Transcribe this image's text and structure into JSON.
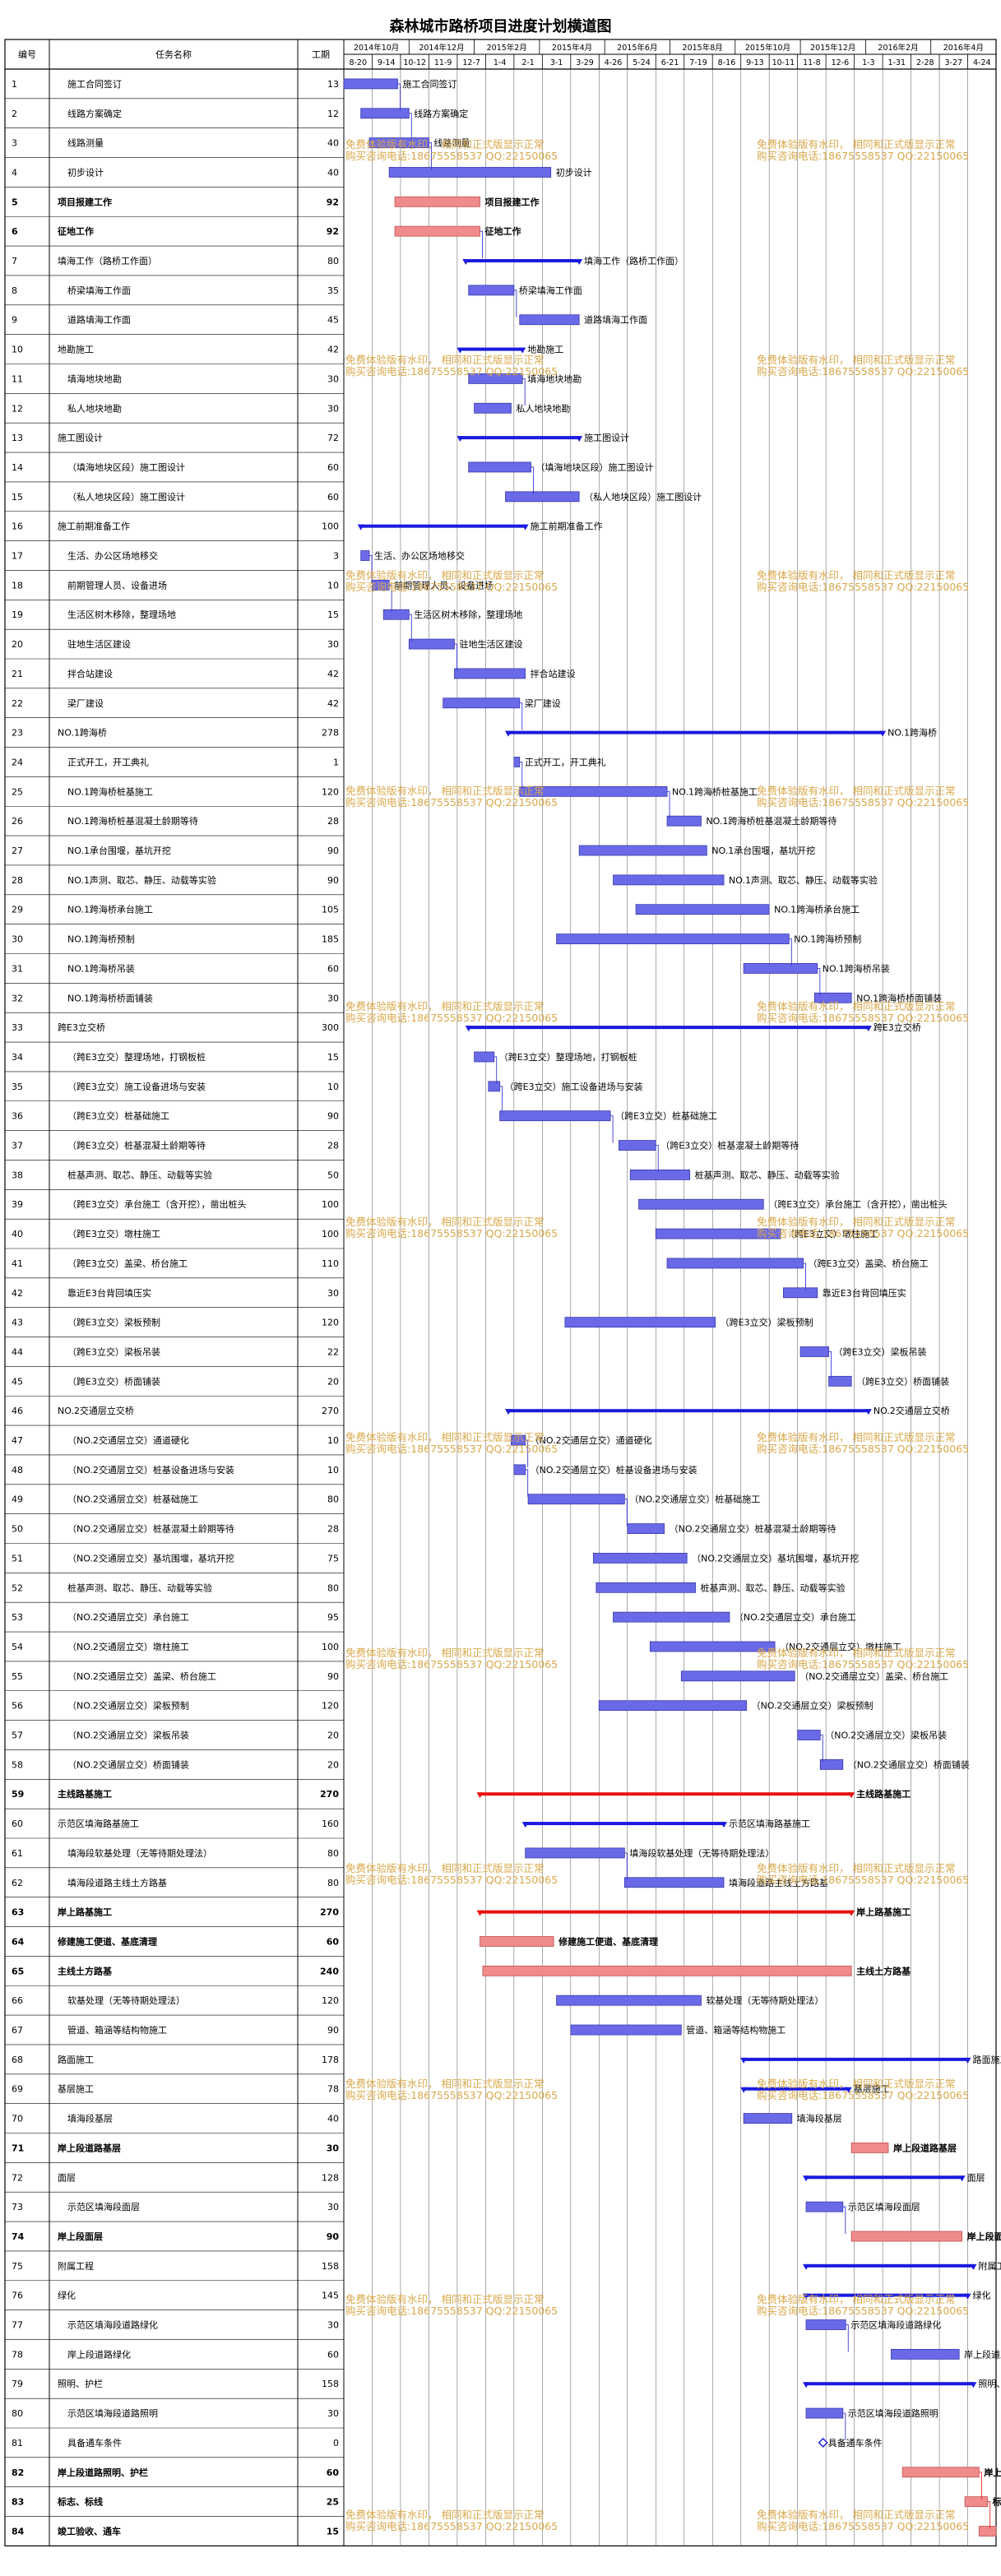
{
  "title": "森林城市路桥项目进度计划横道图",
  "headers": {
    "id": "编号",
    "name": "任务名称",
    "dur": "工期"
  },
  "months": [
    "2014年10月",
    "2014年12月",
    "2015年2月",
    "2015年4月",
    "2015年6月",
    "2015年8月",
    "2015年10月",
    "2015年12月",
    "2016年2月",
    "2016年4月"
  ],
  "weeks": [
    "8-20",
    "9-14",
    "10-12",
    "11-9",
    "12-7",
    "1-4",
    "2-1",
    "3-1",
    "3-29",
    "4-26",
    "5-24",
    "6-21",
    "7-19",
    "8-16",
    "9-13",
    "10-11",
    "11-8",
    "12-6",
    "1-3",
    "1-31",
    "2-28",
    "3-27",
    "4-24"
  ],
  "watermark": {
    "line1": "免费体验版有水印，  相同和正式版显示正常",
    "line2": "购买咨询电话:18675558537 QQ:22150065"
  },
  "colors": {
    "normal": "#6a6ae8",
    "critical": "#ef8b8b",
    "summary": "#1a1ae0",
    "summary_critical": "#e81010",
    "link": "#3a3ad8",
    "link_critical": "#e82020"
  },
  "chart_data": {
    "type": "gantt",
    "x_axis": "weeks from 2014-08-20",
    "rows": [
      {
        "id": "1",
        "name": "施工合同签订",
        "dur": 13,
        "start": 0.0,
        "end": 1.9,
        "kind": "task",
        "crit": false
      },
      {
        "id": "2",
        "name": "线路方案确定",
        "dur": 12,
        "start": 0.6,
        "end": 2.3,
        "kind": "task",
        "crit": false
      },
      {
        "id": "3",
        "name": "线路测量",
        "dur": 40,
        "start": 0.9,
        "end": 3.0,
        "kind": "task",
        "crit": false
      },
      {
        "id": "4",
        "name": "初步设计",
        "dur": 40,
        "start": 1.6,
        "end": 7.3,
        "kind": "task",
        "crit": false
      },
      {
        "id": "5",
        "name": "项目报建工作",
        "dur": 92,
        "start": 1.8,
        "end": 4.8,
        "kind": "task",
        "crit": true,
        "bold": true
      },
      {
        "id": "6",
        "name": "征地工作",
        "dur": 92,
        "start": 1.8,
        "end": 4.8,
        "kind": "task",
        "crit": true,
        "bold": true
      },
      {
        "id": "7",
        "name": "填海工作（路桥工作面）",
        "dur": 80,
        "start": 4.3,
        "end": 8.3,
        "kind": "summary",
        "crit": false
      },
      {
        "id": "8",
        "name": "桥梁填海工作面",
        "dur": 35,
        "start": 4.4,
        "end": 6.0,
        "kind": "task",
        "crit": false
      },
      {
        "id": "9",
        "name": "道路填海工作面",
        "dur": 45,
        "start": 6.2,
        "end": 8.3,
        "kind": "task",
        "crit": false
      },
      {
        "id": "10",
        "name": "地勘施工",
        "dur": 42,
        "start": 4.1,
        "end": 6.3,
        "kind": "summary",
        "crit": false
      },
      {
        "id": "11",
        "name": "填海地块地勘",
        "dur": 30,
        "start": 4.4,
        "end": 6.3,
        "kind": "task",
        "crit": false
      },
      {
        "id": "12",
        "name": "私人地块地勘",
        "dur": 30,
        "start": 4.6,
        "end": 5.9,
        "kind": "task",
        "crit": false
      },
      {
        "id": "13",
        "name": "施工图设计",
        "dur": 72,
        "start": 4.1,
        "end": 8.3,
        "kind": "summary",
        "crit": false
      },
      {
        "id": "14",
        "name": "（填海地块区段）施工图设计",
        "dur": 60,
        "start": 4.4,
        "end": 6.6,
        "kind": "task",
        "crit": false
      },
      {
        "id": "15",
        "name": "（私人地块区段）施工图设计",
        "dur": 60,
        "start": 5.7,
        "end": 8.3,
        "kind": "task",
        "crit": false
      },
      {
        "id": "16",
        "name": "施工前期准备工作",
        "dur": 100,
        "start": 0.6,
        "end": 6.4,
        "kind": "summary",
        "crit": false
      },
      {
        "id": "17",
        "name": "生活、办公区场地移交",
        "dur": 3,
        "start": 0.6,
        "end": 0.9,
        "kind": "task",
        "crit": false
      },
      {
        "id": "18",
        "name": "前期管理人员、设备进场",
        "dur": 10,
        "start": 1.0,
        "end": 1.6,
        "kind": "task",
        "crit": false
      },
      {
        "id": "19",
        "name": "生活区树木移除，整理场地",
        "dur": 15,
        "start": 1.4,
        "end": 2.3,
        "kind": "task",
        "crit": false
      },
      {
        "id": "20",
        "name": "驻地生活区建设",
        "dur": 30,
        "start": 2.3,
        "end": 3.9,
        "kind": "task",
        "crit": false
      },
      {
        "id": "21",
        "name": "拌合站建设",
        "dur": 42,
        "start": 3.9,
        "end": 6.4,
        "kind": "task",
        "crit": false
      },
      {
        "id": "22",
        "name": "梁厂建设",
        "dur": 42,
        "start": 3.5,
        "end": 6.2,
        "kind": "task",
        "crit": false
      },
      {
        "id": "23",
        "name": "NO.1跨海桥",
        "dur": 278,
        "start": 5.8,
        "end": 19.0,
        "kind": "summary",
        "crit": false
      },
      {
        "id": "24",
        "name": "正式开工，开工典礼",
        "dur": 1,
        "start": 6.0,
        "end": 6.2,
        "kind": "task",
        "crit": false
      },
      {
        "id": "25",
        "name": "NO.1跨海桥桩基施工",
        "dur": 120,
        "start": 6.2,
        "end": 11.4,
        "kind": "task",
        "crit": false
      },
      {
        "id": "26",
        "name": "NO.1跨海桥桩基混凝土龄期等待",
        "dur": 28,
        "start": 11.4,
        "end": 12.6,
        "kind": "task",
        "crit": false
      },
      {
        "id": "27",
        "name": "NO.1承台围堰，基坑开挖",
        "dur": 90,
        "start": 8.3,
        "end": 12.8,
        "kind": "task",
        "crit": false
      },
      {
        "id": "28",
        "name": "NO.1声测、取芯、静压、动载等实验",
        "dur": 90,
        "start": 9.5,
        "end": 13.4,
        "kind": "task",
        "crit": false
      },
      {
        "id": "29",
        "name": "NO.1跨海桥承台施工",
        "dur": 105,
        "start": 10.3,
        "end": 15.0,
        "kind": "task",
        "crit": false
      },
      {
        "id": "30",
        "name": "NO.1跨海桥预制",
        "dur": 185,
        "start": 7.5,
        "end": 15.7,
        "kind": "task",
        "crit": false
      },
      {
        "id": "31",
        "name": "NO.1跨海桥吊装",
        "dur": 60,
        "start": 14.1,
        "end": 16.7,
        "kind": "task",
        "crit": false
      },
      {
        "id": "32",
        "name": "NO.1跨海桥桥面铺装",
        "dur": 30,
        "start": 16.6,
        "end": 17.9,
        "kind": "task",
        "crit": false
      },
      {
        "id": "33",
        "name": "跨E3立交桥",
        "dur": 300,
        "start": 4.4,
        "end": 18.5,
        "kind": "summary",
        "crit": false
      },
      {
        "id": "34",
        "name": "（跨E3立交）整理场地，打钢板桩",
        "dur": 15,
        "start": 4.6,
        "end": 5.3,
        "kind": "task",
        "crit": false
      },
      {
        "id": "35",
        "name": "（跨E3立交）施工设备进场与安装",
        "dur": 10,
        "start": 5.1,
        "end": 5.5,
        "kind": "task",
        "crit": false
      },
      {
        "id": "36",
        "name": "（跨E3立交）桩基础施工",
        "dur": 90,
        "start": 5.5,
        "end": 9.4,
        "kind": "task",
        "crit": false
      },
      {
        "id": "37",
        "name": "（跨E3立交）桩基混凝土龄期等待",
        "dur": 28,
        "start": 9.7,
        "end": 11.0,
        "kind": "task",
        "crit": false
      },
      {
        "id": "38",
        "name": "桩基声测、取芯、静压、动载等实验",
        "dur": 50,
        "start": 10.1,
        "end": 12.2,
        "kind": "task",
        "crit": false
      },
      {
        "id": "39",
        "name": "（跨E3立交）承台施工（含开挖），凿出桩头",
        "dur": 100,
        "start": 10.4,
        "end": 14.8,
        "kind": "task",
        "crit": false
      },
      {
        "id": "40",
        "name": "（跨E3立交）墩柱施工",
        "dur": 100,
        "start": 11.0,
        "end": 15.4,
        "kind": "task",
        "crit": false
      },
      {
        "id": "41",
        "name": "（跨E3立交）盖梁、桥台施工",
        "dur": 110,
        "start": 11.4,
        "end": 16.2,
        "kind": "task",
        "crit": false
      },
      {
        "id": "42",
        "name": "靠近E3台背回填压实",
        "dur": 30,
        "start": 15.5,
        "end": 16.7,
        "kind": "task",
        "crit": false
      },
      {
        "id": "43",
        "name": "（跨E3立交）梁板预制",
        "dur": 120,
        "start": 7.8,
        "end": 13.1,
        "kind": "task",
        "crit": false
      },
      {
        "id": "44",
        "name": "（跨E3立交）梁板吊装",
        "dur": 22,
        "start": 16.1,
        "end": 17.1,
        "kind": "task",
        "crit": false
      },
      {
        "id": "45",
        "name": "（跨E3立交）桥面铺装",
        "dur": 20,
        "start": 17.1,
        "end": 17.9,
        "kind": "task",
        "crit": false
      },
      {
        "id": "46",
        "name": "NO.2交通层立交桥",
        "dur": 270,
        "start": 5.8,
        "end": 18.5,
        "kind": "summary",
        "crit": false
      },
      {
        "id": "47",
        "name": "（NO.2交通层立交）通道硬化",
        "dur": 10,
        "start": 5.9,
        "end": 6.4,
        "kind": "task",
        "crit": false
      },
      {
        "id": "48",
        "name": "（NO.2交通层立交）桩基设备进场与安装",
        "dur": 10,
        "start": 6.0,
        "end": 6.4,
        "kind": "task",
        "crit": false
      },
      {
        "id": "49",
        "name": "（NO.2交通层立交）桩基础施工",
        "dur": 80,
        "start": 6.5,
        "end": 9.9,
        "kind": "task",
        "crit": false
      },
      {
        "id": "50",
        "name": "（NO.2交通层立交）桩基混凝土龄期等待",
        "dur": 28,
        "start": 10.0,
        "end": 11.3,
        "kind": "task",
        "crit": false
      },
      {
        "id": "51",
        "name": "（NO.2交通层立交）基坑围堰，基坑开挖",
        "dur": 75,
        "start": 8.8,
        "end": 12.1,
        "kind": "task",
        "crit": false
      },
      {
        "id": "52",
        "name": "桩基声测、取芯、静压、动载等实验",
        "dur": 80,
        "start": 8.9,
        "end": 12.4,
        "kind": "task",
        "crit": false
      },
      {
        "id": "53",
        "name": "（NO.2交通层立交）承台施工",
        "dur": 95,
        "start": 9.5,
        "end": 13.6,
        "kind": "task",
        "crit": false
      },
      {
        "id": "54",
        "name": "（NO.2交通层立交）墩柱施工",
        "dur": 100,
        "start": 10.8,
        "end": 15.2,
        "kind": "task",
        "crit": false
      },
      {
        "id": "55",
        "name": "（NO.2交通层立交）盖梁、桥台施工",
        "dur": 90,
        "start": 11.9,
        "end": 15.9,
        "kind": "task",
        "crit": false
      },
      {
        "id": "56",
        "name": "（NO.2交通层立交）梁板预制",
        "dur": 120,
        "start": 9.0,
        "end": 14.2,
        "kind": "task",
        "crit": false
      },
      {
        "id": "57",
        "name": "（NO.2交通层立交）梁板吊装",
        "dur": 20,
        "start": 16.0,
        "end": 16.8,
        "kind": "task",
        "crit": false
      },
      {
        "id": "58",
        "name": "（NO.2交通层立交）桥面铺装",
        "dur": 20,
        "start": 16.8,
        "end": 17.6,
        "kind": "task",
        "crit": false
      },
      {
        "id": "59",
        "name": "主线路基施工",
        "dur": 270,
        "start": 4.8,
        "end": 17.9,
        "kind": "summary",
        "crit": true,
        "bold": true
      },
      {
        "id": "60",
        "name": "示范区填海路基施工",
        "dur": 160,
        "start": 6.4,
        "end": 13.4,
        "kind": "summary",
        "crit": false
      },
      {
        "id": "61",
        "name": "填海段软基处理（无等待期处理法）",
        "dur": 80,
        "start": 6.4,
        "end": 9.9,
        "kind": "task",
        "crit": false
      },
      {
        "id": "62",
        "name": "填海段道路主线土方路基",
        "dur": 80,
        "start": 9.9,
        "end": 13.4,
        "kind": "task",
        "crit": false
      },
      {
        "id": "63",
        "name": "岸上路基施工",
        "dur": 270,
        "start": 4.8,
        "end": 17.9,
        "kind": "summary",
        "crit": true,
        "bold": true
      },
      {
        "id": "64",
        "name": "修建施工便道、基底清理",
        "dur": 60,
        "start": 4.8,
        "end": 7.4,
        "kind": "task",
        "crit": true,
        "bold": true
      },
      {
        "id": "65",
        "name": "主线土方路基",
        "dur": 240,
        "start": 4.9,
        "end": 17.9,
        "kind": "task",
        "crit": true,
        "bold": true
      },
      {
        "id": "66",
        "name": "软基处理（无等待期处理法）",
        "dur": 120,
        "start": 7.5,
        "end": 12.6,
        "kind": "task",
        "crit": false
      },
      {
        "id": "67",
        "name": "管道、箱涵等结构物施工",
        "dur": 90,
        "start": 8.0,
        "end": 11.9,
        "kind": "task",
        "crit": false
      },
      {
        "id": "68",
        "name": "路面施工",
        "dur": 178,
        "start": 14.1,
        "end": 22.0,
        "kind": "summary",
        "crit": false
      },
      {
        "id": "69",
        "name": "基层施工",
        "dur": 78,
        "start": 14.1,
        "end": 17.8,
        "kind": "summary",
        "crit": false
      },
      {
        "id": "70",
        "name": "填海段基层",
        "dur": 40,
        "start": 14.1,
        "end": 15.8,
        "kind": "task",
        "crit": false
      },
      {
        "id": "71",
        "name": "岸上段道路基层",
        "dur": 30,
        "start": 17.9,
        "end": 19.2,
        "kind": "task",
        "crit": true,
        "bold": true
      },
      {
        "id": "72",
        "name": "面层",
        "dur": 128,
        "start": 16.3,
        "end": 21.8,
        "kind": "summary",
        "crit": false
      },
      {
        "id": "73",
        "name": "示范区填海段面层",
        "dur": 30,
        "start": 16.3,
        "end": 17.6,
        "kind": "task",
        "crit": false
      },
      {
        "id": "74",
        "name": "岸上段面层",
        "dur": 90,
        "start": 17.9,
        "end": 21.8,
        "kind": "task",
        "crit": true,
        "bold": true
      },
      {
        "id": "75",
        "name": "附属工程",
        "dur": 158,
        "start": 16.3,
        "end": 22.2,
        "kind": "summary",
        "crit": false
      },
      {
        "id": "76",
        "name": "绿化",
        "dur": 145,
        "start": 16.3,
        "end": 22.0,
        "kind": "summary",
        "crit": false
      },
      {
        "id": "77",
        "name": "示范区填海段道路绿化",
        "dur": 30,
        "start": 16.3,
        "end": 17.7,
        "kind": "task",
        "crit": false
      },
      {
        "id": "78",
        "name": "岸上段道路绿化",
        "dur": 60,
        "start": 19.3,
        "end": 21.7,
        "kind": "task",
        "crit": false
      },
      {
        "id": "79",
        "name": "照明、护栏",
        "dur": 158,
        "start": 16.3,
        "end": 22.2,
        "kind": "summary",
        "crit": false
      },
      {
        "id": "80",
        "name": "示范区填海段道路照明",
        "dur": 30,
        "start": 16.3,
        "end": 17.6,
        "kind": "task",
        "crit": false
      },
      {
        "id": "81",
        "name": "具备通车条件",
        "dur": 0,
        "start": 16.9,
        "end": 16.9,
        "kind": "milestone",
        "crit": false
      },
      {
        "id": "82",
        "name": "岸上段道路照明、护栏",
        "dur": 60,
        "start": 19.7,
        "end": 22.4,
        "kind": "task",
        "crit": true,
        "bold": true
      },
      {
        "id": "83",
        "name": "标志、标线",
        "dur": 25,
        "start": 21.9,
        "end": 22.7,
        "kind": "task",
        "crit": true,
        "bold": true
      },
      {
        "id": "84",
        "name": "竣工验收、通车",
        "dur": 15,
        "start": 22.4,
        "end": 23.0,
        "kind": "task",
        "crit": true,
        "bold": true
      }
    ]
  }
}
